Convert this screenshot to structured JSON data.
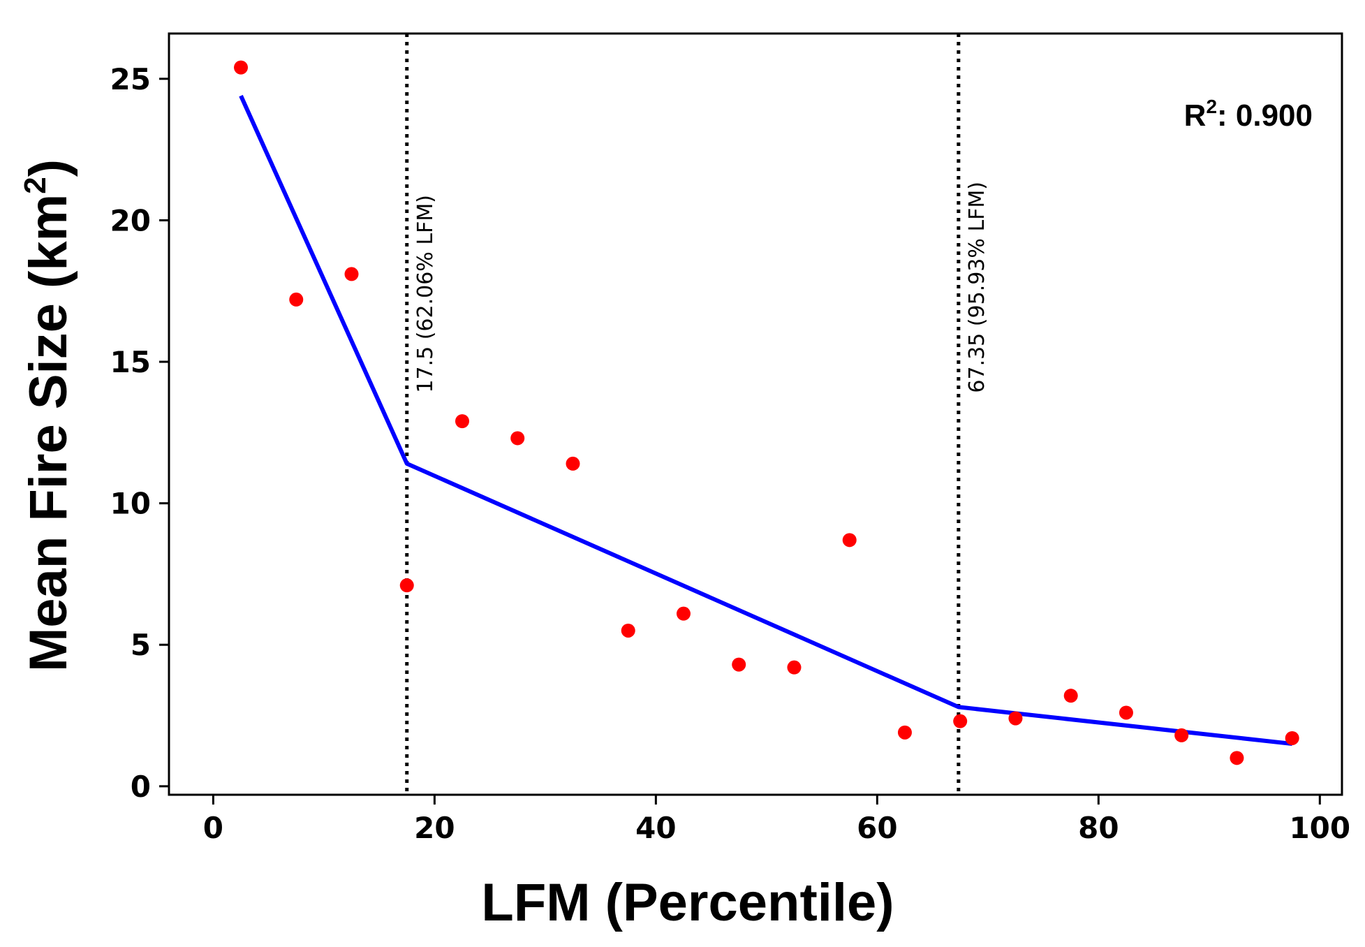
{
  "chart_data": {
    "type": "scatter",
    "xlabel": "LFM (Percentile)",
    "ylabel_main": "Mean Fire Size (km",
    "ylabel_sup": "2",
    "ylabel_close": ")",
    "xlim": [
      -4,
      102
    ],
    "ylim": [
      -0.3,
      26.6
    ],
    "xticks": [
      0,
      20,
      40,
      60,
      80,
      100
    ],
    "yticks": [
      0,
      5,
      10,
      15,
      20,
      25
    ],
    "grid": false,
    "series": [
      {
        "name": "observed",
        "kind": "scatter",
        "color": "#ff0000",
        "points": [
          [
            2.5,
            25.4
          ],
          [
            7.5,
            17.2
          ],
          [
            12.5,
            18.1
          ],
          [
            17.5,
            7.1
          ],
          [
            22.5,
            12.9
          ],
          [
            27.5,
            12.3
          ],
          [
            32.5,
            11.4
          ],
          [
            37.5,
            5.5
          ],
          [
            42.5,
            6.1
          ],
          [
            47.5,
            4.3
          ],
          [
            52.5,
            4.2
          ],
          [
            57.5,
            8.7
          ],
          [
            62.5,
            1.9
          ],
          [
            67.5,
            2.3
          ],
          [
            72.5,
            2.4
          ],
          [
            77.5,
            3.2
          ],
          [
            82.5,
            2.6
          ],
          [
            87.5,
            1.8
          ],
          [
            92.5,
            1.0
          ],
          [
            97.5,
            1.7
          ]
        ]
      },
      {
        "name": "piecewise-fit",
        "kind": "line",
        "color": "#0000ff",
        "points": [
          [
            2.5,
            24.4
          ],
          [
            17.5,
            11.4
          ],
          [
            67.35,
            2.8
          ],
          [
            97.5,
            1.5
          ]
        ]
      }
    ],
    "breakpoints": [
      {
        "x": 17.5,
        "label": "17.5 (62.06% LFM)"
      },
      {
        "x": 67.35,
        "label": "67.35 (95.93% LFM)"
      }
    ],
    "annotation": {
      "prefix": "R",
      "sup": "2",
      "text": ": 0.900"
    }
  }
}
